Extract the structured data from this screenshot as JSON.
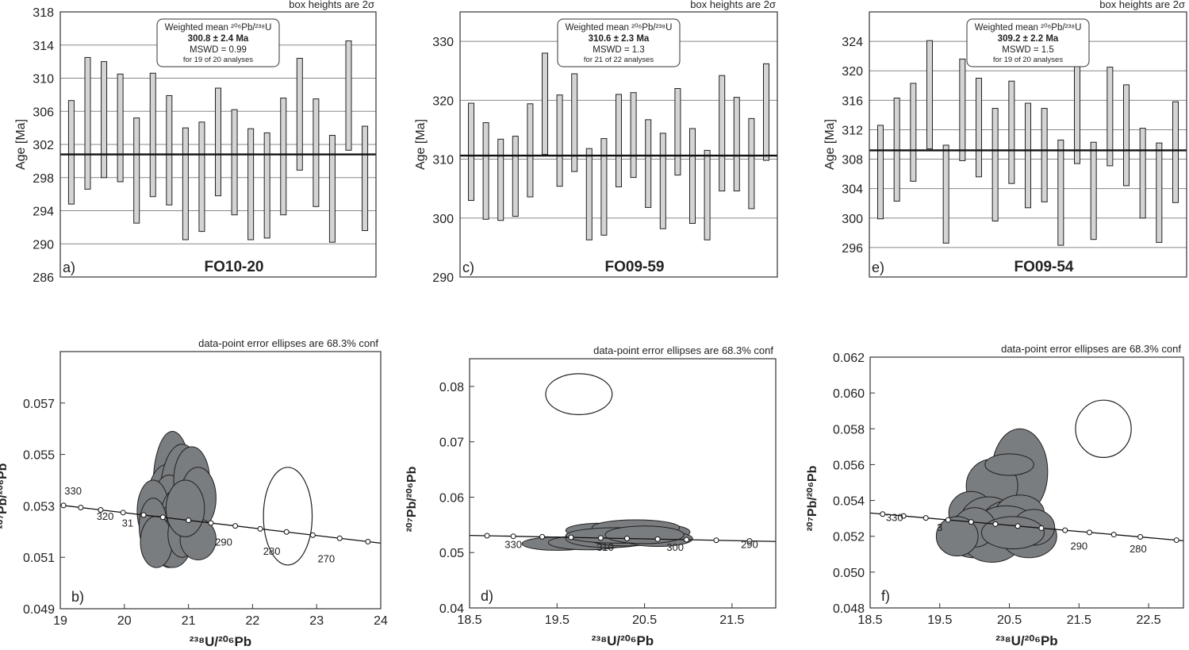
{
  "chart_data": [
    {
      "type": "bar",
      "subtype": "age-error-bars",
      "note": "box heights are 2σ",
      "ylabel": "Age [Ma]",
      "ylim": [
        286,
        318
      ],
      "yticks": [
        286,
        290,
        294,
        298,
        302,
        306,
        310,
        314,
        318
      ],
      "panel": "a)",
      "sample": "FO10-20",
      "mean_line": 300.8,
      "box": {
        "line1": "Weighted mean ²⁰⁶Pb/²³⁸U",
        "line2": "300.8 ± 2.4 Ma",
        "line3": "MSWD = 0.99",
        "line4": "for 19 of 20 analyses"
      },
      "bars": [
        [
          294.8,
          307.3
        ],
        [
          296.6,
          312.5
        ],
        [
          298.0,
          312.0
        ],
        [
          297.5,
          310.5
        ],
        [
          292.5,
          305.2
        ],
        [
          295.7,
          310.6
        ],
        [
          294.7,
          307.9
        ],
        [
          290.5,
          304.0
        ],
        [
          291.5,
          304.7
        ],
        [
          295.8,
          308.8
        ],
        [
          293.5,
          306.2
        ],
        [
          290.5,
          303.9
        ],
        [
          290.7,
          303.4
        ],
        [
          293.5,
          307.6
        ],
        [
          298.9,
          312.4
        ],
        [
          294.5,
          307.5
        ],
        [
          290.2,
          303.1
        ],
        [
          301.3,
          314.5
        ],
        [
          291.6,
          304.2
        ]
      ]
    },
    {
      "type": "bar",
      "subtype": "age-error-bars",
      "note": "box heights are 2σ",
      "ylabel": "Age [Ma]",
      "ylim": [
        290,
        335
      ],
      "yticks": [
        290,
        300,
        310,
        320,
        330
      ],
      "panel": "c)",
      "sample": "FO09-59",
      "mean_line": 310.6,
      "box": {
        "line1": "Weighted mean ²⁰⁶Pb/²³⁸U",
        "line2": "310.6 ± 2.3 Ma",
        "line3": "MSWD = 1.3",
        "line4": "for 21 of 22 analyses"
      },
      "bars": [
        [
          303.0,
          319.5
        ],
        [
          299.8,
          316.2
        ],
        [
          299.6,
          313.4
        ],
        [
          300.3,
          313.9
        ],
        [
          303.6,
          319.4
        ],
        [
          310.8,
          328.0
        ],
        [
          305.4,
          320.9
        ],
        [
          307.9,
          324.5
        ],
        [
          296.3,
          311.8
        ],
        [
          297.1,
          313.5
        ],
        [
          305.3,
          321.0
        ],
        [
          306.9,
          321.3
        ],
        [
          301.8,
          316.7
        ],
        [
          298.2,
          314.4
        ],
        [
          307.3,
          322.0
        ],
        [
          299.1,
          315.2
        ],
        [
          296.3,
          311.5
        ],
        [
          304.6,
          324.2
        ],
        [
          304.6,
          320.5
        ],
        [
          301.6,
          316.9
        ],
        [
          309.8,
          326.2
        ]
      ]
    },
    {
      "type": "bar",
      "subtype": "age-error-bars",
      "note": "box heights are 2σ",
      "ylabel": "Age [Ma]",
      "ylim": [
        292,
        328
      ],
      "yticks": [
        296,
        300,
        304,
        308,
        312,
        316,
        320,
        324
      ],
      "panel": "e)",
      "sample": "FO09-54",
      "mean_line": 309.2,
      "box": {
        "line1": "Weighted mean ²⁰⁶Pb/²³⁸U",
        "line2": "309.2 ± 2.2 Ma",
        "line3": "MSWD = 1.5",
        "line4": "for 19 of 20 analyses"
      },
      "bars": [
        [
          299.9,
          312.6
        ],
        [
          302.3,
          316.3
        ],
        [
          305.0,
          318.3
        ],
        [
          309.4,
          324.1
        ],
        [
          296.6,
          309.9
        ],
        [
          307.8,
          321.6
        ],
        [
          305.6,
          319.0
        ],
        [
          299.6,
          314.9
        ],
        [
          304.7,
          318.6
        ],
        [
          301.4,
          315.6
        ],
        [
          302.2,
          314.9
        ],
        [
          296.3,
          310.6
        ],
        [
          307.4,
          321.1
        ],
        [
          297.1,
          310.3
        ],
        [
          307.1,
          320.5
        ],
        [
          304.4,
          318.1
        ],
        [
          300.0,
          312.2
        ],
        [
          296.7,
          310.2
        ],
        [
          302.1,
          315.8
        ]
      ]
    },
    {
      "type": "scatter",
      "subtype": "concordia",
      "note": "data-point error ellipses are 68.3% conf",
      "xlabel": "²³⁸U/²⁰⁶Pb",
      "ylabel": "²⁰⁷Pb/²⁰⁶Pb",
      "xlim": [
        19,
        24
      ],
      "ylim": [
        0.049,
        0.059
      ],
      "xticks": [
        "19",
        "20",
        "21",
        "22",
        "23",
        "24"
      ],
      "yticks": [
        "0.049",
        "0.051",
        "0.053",
        "0.055",
        "0.057"
      ],
      "panel": "b)",
      "concordia_x": [
        19,
        24
      ],
      "concordia_y": [
        0.05303,
        0.05155
      ],
      "concordia_nodes": [
        19.05,
        19.32,
        19.63,
        19.98,
        20.3,
        20.6,
        21.0,
        21.35,
        21.73,
        22.12,
        22.53,
        22.94,
        23.36,
        23.8
      ],
      "concordia_labels": [
        {
          "text": "330",
          "x": 19.2,
          "y": 0.05345
        },
        {
          "text": "320",
          "x": 19.7,
          "y": 0.05245
        },
        {
          "text": "31",
          "x": 20.05,
          "y": 0.0522
        },
        {
          "text": "290",
          "x": 21.55,
          "y": 0.05145
        },
        {
          "text": "280",
          "x": 22.3,
          "y": 0.0511
        },
        {
          "text": "270",
          "x": 23.15,
          "y": 0.0508
        }
      ],
      "ellipses_filled": [
        [
          20.75,
          0.0538,
          0.3,
          0.0021
        ],
        [
          20.65,
          0.053,
          0.3,
          0.0016
        ],
        [
          20.9,
          0.0534,
          0.34,
          0.002
        ],
        [
          21.05,
          0.053,
          0.3,
          0.0017
        ],
        [
          20.7,
          0.0524,
          0.32,
          0.0018
        ],
        [
          21.05,
          0.054,
          0.28,
          0.0013
        ],
        [
          21.15,
          0.0533,
          0.28,
          0.0012
        ],
        [
          20.45,
          0.0528,
          0.25,
          0.0012
        ],
        [
          20.85,
          0.0526,
          0.28,
          0.0011
        ],
        [
          20.75,
          0.0518,
          0.32,
          0.0012
        ],
        [
          20.45,
          0.0522,
          0.22,
          0.0011
        ],
        [
          20.5,
          0.0516,
          0.25,
          0.001
        ],
        [
          20.9,
          0.0519,
          0.22,
          0.0009
        ],
        [
          21.15,
          0.0517,
          0.28,
          0.0008
        ],
        [
          20.95,
          0.0529,
          0.3,
          0.0011
        ]
      ],
      "ellipses_open": [
        [
          22.55,
          0.0526,
          0.38,
          0.0019
        ]
      ]
    },
    {
      "type": "scatter",
      "subtype": "concordia",
      "note": "data-point error ellipses are 68.3% conf",
      "xlabel": "²³⁸U/²⁰⁶Pb",
      "ylabel": "²⁰⁷Pb/²⁰⁶Pb",
      "xlim": [
        18.5,
        22.0
      ],
      "ylim": [
        0.04,
        0.085
      ],
      "xticks": [
        "18.5",
        "19.5",
        "20.5",
        "21.5"
      ],
      "yticks": [
        "0.04",
        "0.05",
        "0.06",
        "0.07",
        "0.08"
      ],
      "panel": "d)",
      "concordia_x": [
        18.5,
        22.0
      ],
      "concordia_y": [
        0.0531,
        0.052
      ],
      "concordia_nodes": [
        18.7,
        19.0,
        19.33,
        19.66,
        20.0,
        20.3,
        20.65,
        20.98,
        21.32,
        21.7
      ],
      "concordia_labels": [
        {
          "text": "330",
          "x": 19.0,
          "y": 0.0508
        },
        {
          "text": "310",
          "x": 20.05,
          "y": 0.0503
        },
        {
          "text": "300",
          "x": 20.85,
          "y": 0.0503
        },
        {
          "text": "290",
          "x": 21.7,
          "y": 0.0508
        }
      ],
      "ellipses_filled": [
        [
          19.5,
          0.0516,
          0.4,
          0.0012
        ],
        [
          19.85,
          0.0518,
          0.45,
          0.0013
        ],
        [
          20.1,
          0.0525,
          0.5,
          0.0016
        ],
        [
          20.3,
          0.053,
          0.5,
          0.0018
        ],
        [
          20.6,
          0.0537,
          0.42,
          0.0015
        ],
        [
          20.0,
          0.054,
          0.4,
          0.0013
        ],
        [
          20.4,
          0.0545,
          0.5,
          0.0014
        ],
        [
          20.2,
          0.0531,
          0.6,
          0.0014
        ],
        [
          20.65,
          0.0525,
          0.4,
          0.0014
        ],
        [
          20.5,
          0.0532,
          0.45,
          0.0016
        ]
      ],
      "ellipses_open": [
        [
          19.75,
          0.0786,
          0.38,
          0.0037
        ]
      ]
    },
    {
      "type": "scatter",
      "subtype": "concordia",
      "note": "data-point error ellipses are 68.3% conf",
      "xlabel": "²³⁸U/²⁰⁶Pb",
      "ylabel": "²⁰⁷Pb/²⁰⁶Pb",
      "xlim": [
        18.5,
        23.0
      ],
      "ylim": [
        0.048,
        0.062
      ],
      "xticks": [
        "18.5",
        "19.5",
        "20.5",
        "21.5",
        "22.5"
      ],
      "yticks": [
        "0.048",
        "0.050",
        "0.052",
        "0.054",
        "0.056",
        "0.058",
        "0.060",
        "0.062"
      ],
      "panel": "f)",
      "concordia_x": [
        18.5,
        23.0
      ],
      "concordia_y": [
        0.0533,
        0.05175
      ],
      "concordia_nodes": [
        18.68,
        18.98,
        19.3,
        19.62,
        19.95,
        20.3,
        20.62,
        20.96,
        21.3,
        21.65,
        22.0,
        22.38,
        22.9
      ],
      "concordia_labels": [
        {
          "text": "330",
          "x": 18.85,
          "y": 0.05285
        },
        {
          "text": "3",
          "x": 19.5,
          "y": 0.0523
        },
        {
          "text": "290",
          "x": 21.5,
          "y": 0.05125
        },
        {
          "text": "280",
          "x": 22.35,
          "y": 0.0511
        }
      ],
      "ellipses_filled": [
        [
          20.65,
          0.0556,
          0.4,
          0.0024
        ],
        [
          20.25,
          0.0548,
          0.37,
          0.0015
        ],
        [
          20.5,
          0.056,
          0.35,
          0.0006
        ],
        [
          19.95,
          0.0533,
          0.32,
          0.0012
        ],
        [
          20.2,
          0.0529,
          0.4,
          0.0013
        ],
        [
          20.5,
          0.0526,
          0.42,
          0.0014
        ],
        [
          20.65,
          0.0533,
          0.35,
          0.001
        ],
        [
          20.0,
          0.0521,
          0.42,
          0.0013
        ],
        [
          20.25,
          0.05175,
          0.42,
          0.0012
        ],
        [
          20.78,
          0.052,
          0.4,
          0.0012
        ],
        [
          20.45,
          0.0528,
          0.4,
          0.0009
        ],
        [
          20.0,
          0.0525,
          0.3,
          0.0011
        ],
        [
          20.85,
          0.0525,
          0.3,
          0.001
        ],
        [
          19.75,
          0.052,
          0.3,
          0.0011
        ],
        [
          20.55,
          0.0522,
          0.45,
          0.0009
        ]
      ],
      "ellipses_open": [
        [
          21.85,
          0.058,
          0.4,
          0.0016
        ]
      ]
    }
  ]
}
